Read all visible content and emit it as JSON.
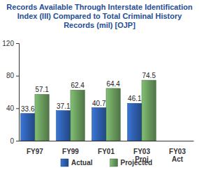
{
  "chart_data": {
    "type": "bar",
    "title": "Records Available Through Interstate Identification Index (III) Compared to Total Criminal History Records (mil) [OJP]",
    "categories": [
      "FY97",
      "FY99",
      "FY01",
      "FY03 Proj",
      "FY03 Act"
    ],
    "series": [
      {
        "name": "Actual",
        "color": "#2f5fae",
        "values": [
          33.6,
          37.1,
          40.7,
          46.1,
          null
        ]
      },
      {
        "name": "Projected",
        "color": "#6a9c5e",
        "values": [
          57.1,
          62.4,
          64.4,
          74.5,
          null
        ]
      }
    ],
    "ylim": [
      0,
      120
    ],
    "yticks": [
      0,
      40,
      80,
      120
    ],
    "grid": false,
    "legend": "bottom",
    "data_labels": true
  }
}
